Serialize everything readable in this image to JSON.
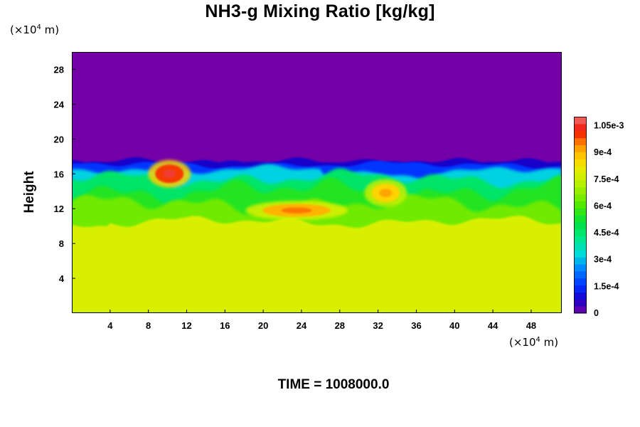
{
  "chart_data": {
    "type": "heatmap",
    "title": "NH3-g Mixing Ratio [kg/kg]",
    "ylabel": "Height",
    "xlabel": "",
    "x_unit": "(×10⁴ m)",
    "y_unit": "(×10⁴ m)",
    "unit_base": "(×10",
    "unit_exp": "4",
    "unit_tail": " m)",
    "xlim": [
      0,
      51.2
    ],
    "ylim": [
      0,
      30
    ],
    "x_ticks": [
      "4",
      "8",
      "12",
      "16",
      "20",
      "24",
      "28",
      "32",
      "36",
      "40",
      "44",
      "48"
    ],
    "y_ticks": [
      "4",
      "8",
      "12",
      "16",
      "20",
      "24",
      "28"
    ],
    "x_tick_values": [
      4,
      8,
      12,
      16,
      20,
      24,
      28,
      32,
      36,
      40,
      44,
      48
    ],
    "y_tick_values": [
      4,
      8,
      12,
      16,
      20,
      24,
      28
    ],
    "colorbar": {
      "range": [
        0,
        0.0011
      ],
      "labels": [
        "0",
        "1.5e-4",
        "3e-4",
        "4.5e-4",
        "6e-4",
        "7.5e-4",
        "9e-4",
        "1.05e-3"
      ],
      "label_values": [
        0,
        0.00015,
        0.0003,
        0.00045,
        0.0006,
        0.00075,
        0.0009,
        0.00105
      ]
    },
    "field_summary": {
      "above_cloud_top": 0,
      "cloud_top_height": 17.3,
      "lower_layer_top": 10.5,
      "lower_layer_value": 0.00078,
      "mixed_layer_value": 0.00055,
      "maxima": [
        {
          "x": 10.2,
          "y": 16.0,
          "value": 0.00106
        },
        {
          "x": 23.5,
          "y": 11.8,
          "value": 0.00096
        },
        {
          "x": 32.8,
          "y": 13.8,
          "value": 0.00092
        }
      ]
    }
  },
  "footer": {
    "time_label": "TIME = 1008000.0"
  },
  "colors": {
    "low": "#7400a8",
    "high": "#f07070",
    "background": "#ffffff"
  }
}
